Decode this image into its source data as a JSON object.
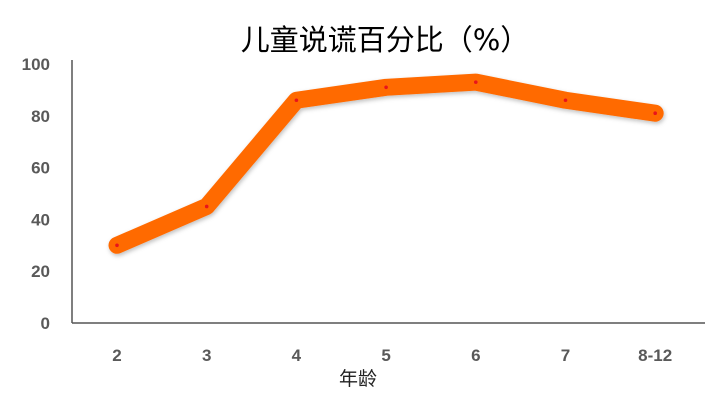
{
  "chart_data": {
    "type": "line",
    "title": "儿童说谎百分比（%）",
    "xlabel": "年龄",
    "ylabel": "",
    "categories": [
      "2",
      "3",
      "4",
      "5",
      "6",
      "7",
      "8-12"
    ],
    "series": [
      {
        "values": [
          30,
          45,
          86,
          91,
          93,
          86,
          81
        ],
        "color": "#FF6A00",
        "marker_color": "#E8141B"
      }
    ],
    "ylim": [
      0,
      100
    ],
    "yticks": [
      "0",
      "20",
      "40",
      "60",
      "80",
      "100"
    ],
    "grid": false,
    "legend": "none"
  }
}
